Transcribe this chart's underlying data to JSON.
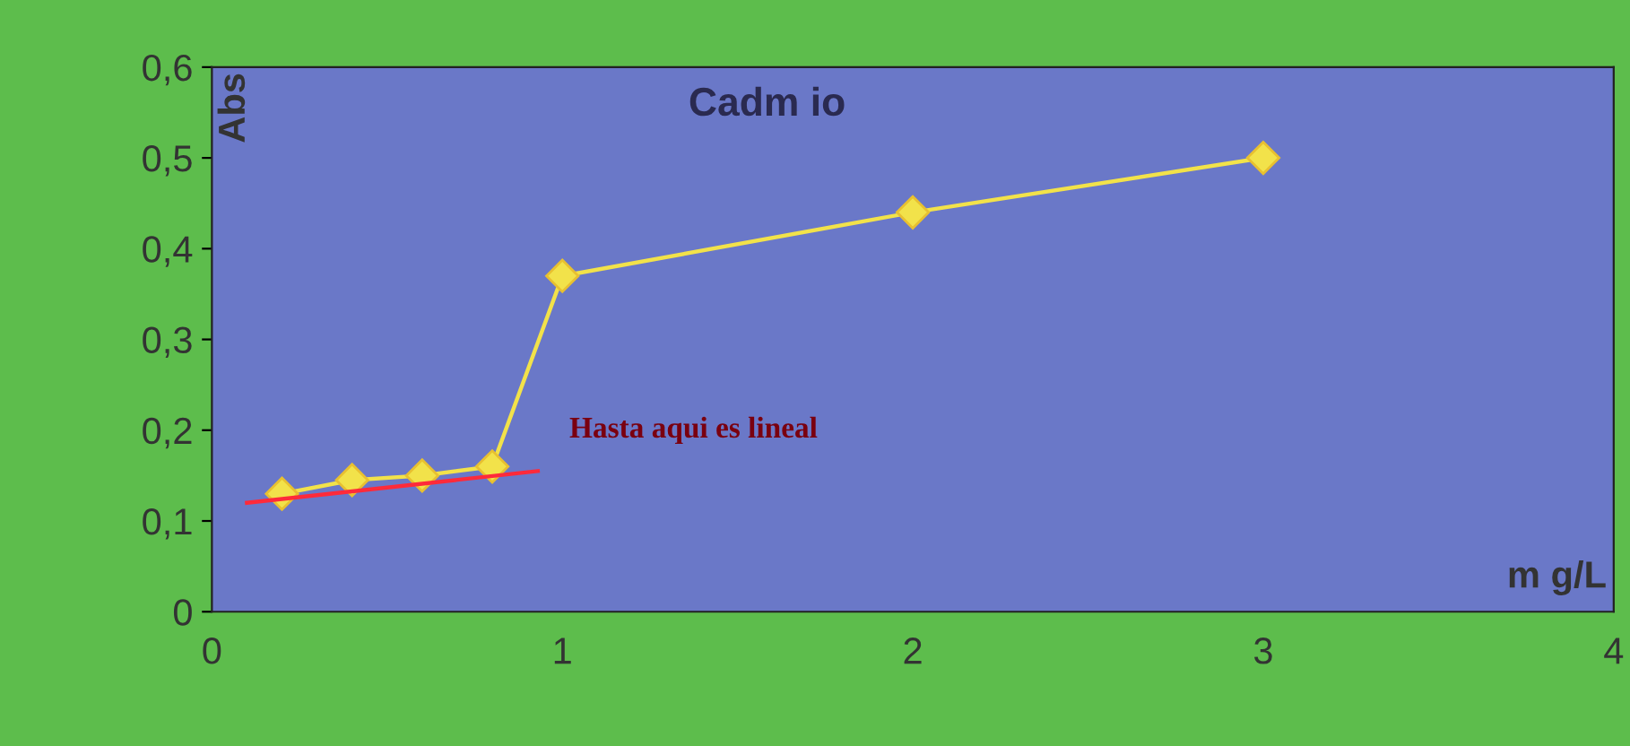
{
  "chart_data": {
    "type": "line",
    "title": "Cadm io",
    "xlabel": "m g/L",
    "ylabel": "Abs",
    "annotations": [
      "Hasta aqui es lineal"
    ],
    "xlim": [
      0,
      4
    ],
    "xticks": [
      0,
      1,
      2,
      3,
      4
    ],
    "ylim": [
      0,
      0.6
    ],
    "yticks": [
      0,
      {
        "value": 0.1,
        "label": "0,1"
      },
      {
        "value": 0.2,
        "label": "0,2"
      },
      {
        "value": 0.3,
        "label": "0,3"
      },
      {
        "value": 0.4,
        "label": "0,4"
      },
      {
        "value": 0.5,
        "label": "0,5"
      },
      {
        "value": 0.6,
        "label": "0,6"
      }
    ],
    "series": [
      {
        "color": "#f2e24a",
        "marker": "diamond",
        "x": [
          0.2,
          0.4,
          0.6,
          0.8,
          1,
          2,
          3
        ],
        "values": [
          0.13,
          0.145,
          0.15,
          0.16,
          0.37,
          0.44,
          0.5
        ]
      },
      {
        "color": "#ff2a3a",
        "marker": "none",
        "x": [
          0.1,
          0.93
        ],
        "values": [
          0.12,
          0.155
        ]
      }
    ],
    "grid": false,
    "legend": false
  }
}
